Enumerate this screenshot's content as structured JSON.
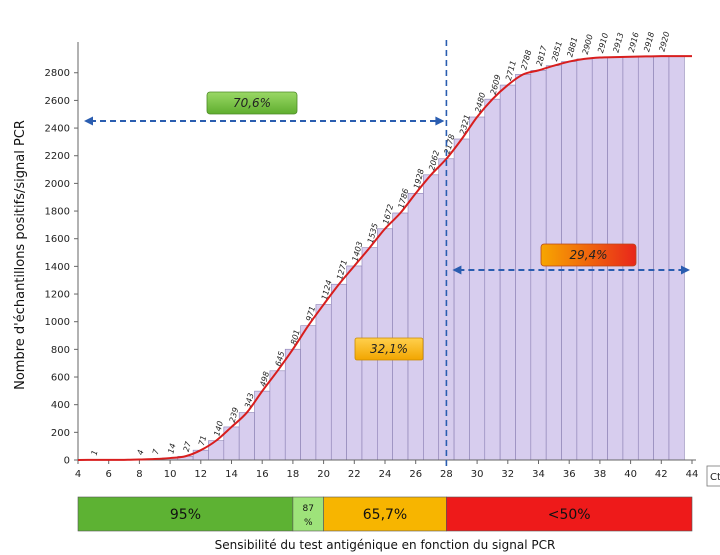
{
  "chart_data": {
    "type": "bar",
    "ylabel": "Nombre d'échantillons positifs/signal PCR",
    "xlabel": "Sensibilité du test antigénique en fonction du signal PCR",
    "xunit": "Ct",
    "x_ticks": [
      4,
      6,
      8,
      10,
      12,
      14,
      16,
      18,
      20,
      22,
      24,
      26,
      28,
      30,
      32,
      34,
      36,
      38,
      40,
      42,
      44
    ],
    "y_ticks": [
      0,
      200,
      400,
      600,
      800,
      1000,
      1200,
      1400,
      1600,
      1800,
      2000,
      2200,
      2400,
      2600,
      2800
    ],
    "xlim": [
      4,
      44
    ],
    "ylim": [
      0,
      2950
    ],
    "bars": [
      {
        "x": 5,
        "value": 1,
        "label": "1"
      },
      {
        "x": 6,
        "value": 1,
        "label": ""
      },
      {
        "x": 7,
        "value": 1,
        "label": ""
      },
      {
        "x": 8,
        "value": 4,
        "label": "4"
      },
      {
        "x": 9,
        "value": 7,
        "label": "7"
      },
      {
        "x": 10,
        "value": 14,
        "label": "14"
      },
      {
        "x": 11,
        "value": 27,
        "label": "27"
      },
      {
        "x": 12,
        "value": 71,
        "label": "71"
      },
      {
        "x": 13,
        "value": 140,
        "label": "140"
      },
      {
        "x": 14,
        "value": 239,
        "label": "239"
      },
      {
        "x": 15,
        "value": 343,
        "label": "343"
      },
      {
        "x": 16,
        "value": 498,
        "label": "498"
      },
      {
        "x": 17,
        "value": 645,
        "label": "645"
      },
      {
        "x": 18,
        "value": 801,
        "label": "801"
      },
      {
        "x": 19,
        "value": 971,
        "label": "971"
      },
      {
        "x": 20,
        "value": 1124,
        "label": "1124"
      },
      {
        "x": 21,
        "value": 1271,
        "label": "1271"
      },
      {
        "x": 22,
        "value": 1403,
        "label": "1403"
      },
      {
        "x": 23,
        "value": 1535,
        "label": "1535"
      },
      {
        "x": 24,
        "value": 1672,
        "label": "1672"
      },
      {
        "x": 25,
        "value": 1786,
        "label": "1786"
      },
      {
        "x": 26,
        "value": 1928,
        "label": "1928"
      },
      {
        "x": 27,
        "value": 2062,
        "label": "2062"
      },
      {
        "x": 28,
        "value": 2178,
        "label": "2178"
      },
      {
        "x": 29,
        "value": 2321,
        "label": "2321"
      },
      {
        "x": 30,
        "value": 2480,
        "label": "2480"
      },
      {
        "x": 31,
        "value": 2609,
        "label": "2609"
      },
      {
        "x": 32,
        "value": 2711,
        "label": "2711"
      },
      {
        "x": 33,
        "value": 2788,
        "label": "2788"
      },
      {
        "x": 34,
        "value": 2817,
        "label": "2817"
      },
      {
        "x": 35,
        "value": 2851,
        "label": "2851"
      },
      {
        "x": 36,
        "value": 2881,
        "label": "2881"
      },
      {
        "x": 37,
        "value": 2900,
        "label": "2900"
      },
      {
        "x": 38,
        "value": 2910,
        "label": "2910"
      },
      {
        "x": 39,
        "value": 2913,
        "label": "2913"
      },
      {
        "x": 40,
        "value": 2916,
        "label": "2916"
      },
      {
        "x": 41,
        "value": 2918,
        "label": "2918"
      },
      {
        "x": 42,
        "value": 2920,
        "label": "2920"
      },
      {
        "x": 43,
        "value": 2920,
        "label": ""
      }
    ],
    "cutoff_x": 28,
    "annotations": {
      "left": {
        "text": "70,6%",
        "color": "#7dc142"
      },
      "right": {
        "text": "29,4%",
        "color_from": "#f7a600",
        "color_to": "#e8261b"
      },
      "middle": {
        "text": "32,1%",
        "color": "#f7b500"
      }
    },
    "sensitivity_bands": [
      {
        "from": 4,
        "to": 18,
        "label": "95%",
        "color": "#5db233"
      },
      {
        "from": 18,
        "to": 20,
        "label": "87 %",
        "color": "#9ee37a"
      },
      {
        "from": 20,
        "to": 28,
        "label": "65,7%",
        "color": "#f7b500"
      },
      {
        "from": 28,
        "to": 44,
        "label": "<50%",
        "color": "#ee1a1a"
      }
    ],
    "colors": {
      "bar_fill": "#d7cdee",
      "bar_stroke": "#8a7fb3",
      "curve": "#d81e1e",
      "arrow": "#2a5db0"
    }
  }
}
